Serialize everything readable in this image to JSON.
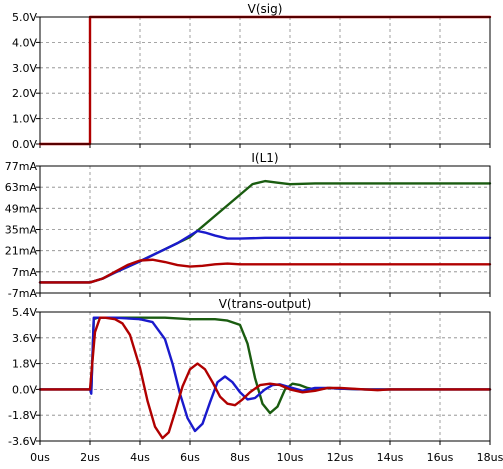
{
  "chart_data": [
    {
      "type": "line",
      "title": "V(sig)",
      "ylim": [
        0.0,
        5.0
      ],
      "yticks": [
        "5.0V",
        "4.0V",
        "3.0V",
        "2.0V",
        "1.0V",
        "0.0V"
      ],
      "ytick_values": [
        5,
        4,
        3,
        2,
        1,
        0
      ],
      "xlim": [
        0,
        18
      ],
      "grid": true,
      "series": [
        {
          "color": "#b00000",
          "x": [
            0,
            2,
            2,
            18
          ],
          "y": [
            0,
            0,
            5,
            5
          ]
        }
      ]
    },
    {
      "type": "line",
      "title": "I(L1)",
      "ylim": [
        -7,
        77
      ],
      "yticks": [
        "77mA",
        "63mA",
        "49mA",
        "35mA",
        "21mA",
        "7mA",
        "-7mA"
      ],
      "ytick_values": [
        77,
        63,
        49,
        35,
        21,
        7,
        -7
      ],
      "xlim": [
        0,
        18
      ],
      "grid": true,
      "series": [
        {
          "color": "#1a5c10",
          "x": [
            0,
            2,
            2.5,
            3,
            4,
            5,
            6,
            7,
            8,
            8.5,
            9,
            9.5,
            10,
            11,
            12,
            14,
            16,
            18
          ],
          "y": [
            0,
            0,
            2.5,
            6.5,
            14,
            22,
            30,
            44,
            58,
            65,
            67,
            66,
            65,
            65.5,
            65.5,
            65.5,
            65.5,
            65.5
          ]
        },
        {
          "color": "#1a1acc",
          "x": [
            0,
            2,
            2.5,
            3,
            4,
            5,
            5.5,
            6,
            6.3,
            6.6,
            7,
            7.5,
            8,
            9,
            10,
            11,
            12,
            14,
            16,
            18
          ],
          "y": [
            0,
            0,
            2.5,
            6.5,
            14,
            22,
            26,
            31,
            34,
            33,
            31,
            29,
            29,
            29.5,
            29.5,
            29.5,
            29.5,
            29.5,
            29.5,
            29.5
          ]
        },
        {
          "color": "#b00000",
          "x": [
            0,
            2,
            2.5,
            3,
            3.5,
            4,
            4.5,
            5,
            5.5,
            6,
            6.5,
            7,
            7.5,
            8,
            9,
            10,
            12,
            14,
            16,
            18
          ],
          "y": [
            0,
            0,
            2.5,
            7,
            11.5,
            14.5,
            15,
            13.5,
            11.5,
            10.5,
            11,
            12,
            12.5,
            12,
            12,
            12,
            12,
            12,
            12,
            12
          ]
        }
      ]
    },
    {
      "type": "line",
      "title": "V(trans-output)",
      "ylim": [
        -3.6,
        5.4
      ],
      "yticks": [
        "5.4V",
        "3.6V",
        "1.8V",
        "0.0V",
        "-1.8V",
        "-3.6V"
      ],
      "ytick_values": [
        5.4,
        3.6,
        1.8,
        0,
        -1.8,
        -3.6
      ],
      "xlim": [
        0,
        18
      ],
      "xticks": [
        "0us",
        "2us",
        "4us",
        "6us",
        "8us",
        "10us",
        "12us",
        "14us",
        "16us",
        "18us"
      ],
      "xtick_values": [
        0,
        2,
        4,
        6,
        8,
        10,
        12,
        14,
        16,
        18
      ],
      "grid": true,
      "series": [
        {
          "color": "#1a5c10",
          "x": [
            0,
            2,
            2.05,
            2.15,
            2.3,
            3,
            4,
            5,
            6,
            7,
            7.5,
            8,
            8.3,
            8.6,
            8.9,
            9.2,
            9.5,
            9.8,
            10.1,
            10.4,
            10.7,
            11,
            11.3,
            11.6,
            12,
            13,
            14,
            16,
            18
          ],
          "y": [
            0,
            0,
            -0.2,
            4.9,
            5.0,
            5.0,
            5.0,
            5.0,
            4.9,
            4.9,
            4.8,
            4.5,
            3.2,
            0.8,
            -1.0,
            -1.65,
            -1.2,
            0.0,
            0.4,
            0.3,
            0.1,
            0.0,
            0.05,
            0.1,
            0.05,
            0,
            0,
            0,
            0
          ]
        },
        {
          "color": "#1a1acc",
          "x": [
            0,
            2,
            2.05,
            2.15,
            2.3,
            3,
            4,
            4.5,
            5,
            5.3,
            5.6,
            5.9,
            6.2,
            6.5,
            6.8,
            7.1,
            7.4,
            7.7,
            8,
            8.3,
            8.6,
            9,
            9.3,
            9.6,
            10,
            10.5,
            11,
            11.5,
            12,
            13,
            14,
            16,
            18
          ],
          "y": [
            0,
            0,
            -0.3,
            5.0,
            5.0,
            5.0,
            4.9,
            4.7,
            3.5,
            1.8,
            -0.3,
            -2.0,
            -2.9,
            -2.4,
            -0.9,
            0.5,
            0.9,
            0.5,
            -0.2,
            -0.7,
            -0.6,
            0.0,
            0.3,
            0.35,
            0.15,
            -0.1,
            0.1,
            0.1,
            0.05,
            0,
            0,
            0,
            0
          ]
        },
        {
          "color": "#b00000",
          "x": [
            0,
            2,
            2.2,
            2.4,
            2.6,
            3,
            3.3,
            3.6,
            4,
            4.3,
            4.6,
            4.9,
            5.15,
            5.4,
            5.7,
            6,
            6.3,
            6.6,
            6.9,
            7.2,
            7.5,
            7.8,
            8.1,
            8.4,
            8.8,
            9.2,
            9.6,
            10,
            10.5,
            11,
            11.5,
            12,
            12.5,
            13,
            13.5,
            14,
            16,
            18
          ],
          "y": [
            0,
            0,
            4.0,
            5.0,
            5.0,
            4.9,
            4.6,
            3.8,
            1.5,
            -0.8,
            -2.6,
            -3.4,
            -3.0,
            -1.6,
            0.2,
            1.4,
            1.8,
            1.4,
            0.5,
            -0.5,
            -1.0,
            -1.1,
            -0.7,
            -0.2,
            0.3,
            0.4,
            0.3,
            0.0,
            -0.2,
            -0.1,
            0.1,
            0.1,
            0.05,
            0.0,
            -0.05,
            0,
            0,
            0
          ]
        }
      ]
    }
  ]
}
